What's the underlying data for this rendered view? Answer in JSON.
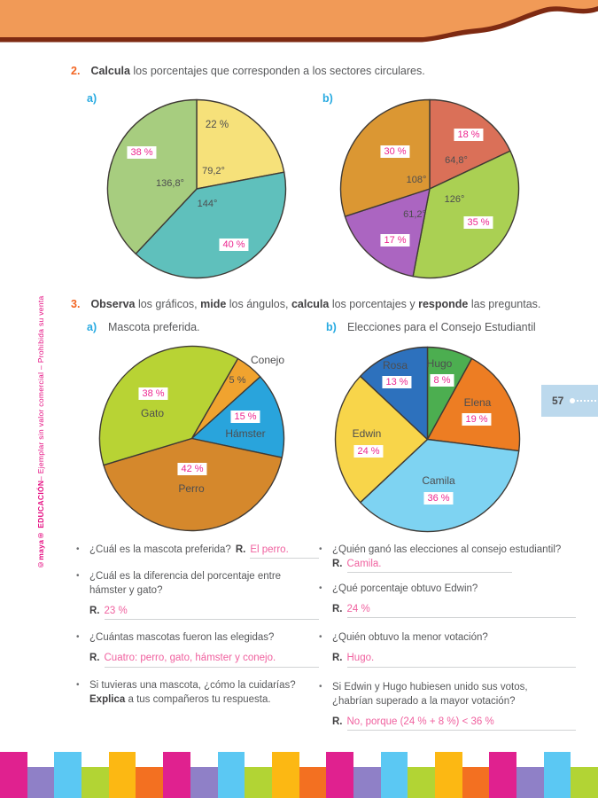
{
  "ui": {
    "bullet": "•",
    "r_label": "R."
  },
  "colors": {
    "accent_orange": "#f26522",
    "blue_label": "#27aae1",
    "magenta_value": "#ec268f",
    "answer_pink": "#f0619f",
    "band_orange": "#f19a57",
    "band_maroon": "#7e2a12",
    "tab_blue": "#bcd9ed",
    "stripe_colors": [
      "#e0218f",
      "#8f80c7",
      "#5bc8f3",
      "#b2d434",
      "#fcb813",
      "#f37021"
    ]
  },
  "sidebar": {
    "brand": "©maya® EDUCACIÓN",
    "rest": " – Ejemplar sin valor comercial – Prohibida su venta"
  },
  "page_tab": {
    "number": "57"
  },
  "exercise2": {
    "number": "2.",
    "title_bold": "Calcula",
    "title_rest": " los porcentajes que corresponden a los sectores circulares.",
    "label_a": "a)",
    "label_b": "b)"
  },
  "exercise3": {
    "number": "3.",
    "s1b": "Observa",
    "s2": " los gráficos, ",
    "s3b": "mide",
    "s4": " los ángulos, ",
    "s5b": "calcula",
    "s6": " los porcentajes y ",
    "s7b": "responde",
    "s8": " las preguntas.",
    "label_a": "a)",
    "title_a": "Mascota preferida.",
    "label_b": "b)",
    "title_b": "Elecciones para el Consejo Estudiantil"
  },
  "chart_data": [
    {
      "type": "pie",
      "id": "2a",
      "rotation": 0,
      "legend_position": "none",
      "slices": [
        {
          "value": 22,
          "color": "#f6e17a",
          "pct_label": "22 %",
          "angle_label": "79,2°"
        },
        {
          "value": 40,
          "color": "#5fc0bc",
          "pct_label": "40 %",
          "angle_label": "144°"
        },
        {
          "value": 38,
          "color": "#a7cd7f",
          "pct_label": "38 %",
          "angle_label": "136,8°"
        }
      ]
    },
    {
      "type": "pie",
      "id": "2b",
      "rotation": 0,
      "legend_position": "none",
      "slices": [
        {
          "value": 18,
          "color": "#da7058",
          "pct_label": "18 %",
          "angle_label": "64,8°"
        },
        {
          "value": 35,
          "color": "#aad053",
          "pct_label": "35 %",
          "angle_label": "126°"
        },
        {
          "value": 17,
          "color": "#ab65c1",
          "pct_label": "17 %",
          "angle_label": "61,2°"
        },
        {
          "value": 30,
          "color": "#db9733",
          "pct_label": "30 %",
          "angle_label": "108°"
        }
      ]
    },
    {
      "type": "pie",
      "id": "3a",
      "title": "Mascota preferida.",
      "rotation": 30,
      "legend_position": "none",
      "slices": [
        {
          "name": "Conejo",
          "value": 5,
          "color": "#f0a32f",
          "pct_label": "5 %"
        },
        {
          "name": "Hámster",
          "value": 15,
          "color": "#29a4dc",
          "pct_label": "15 %"
        },
        {
          "name": "Perro",
          "value": 42,
          "color": "#d5882c",
          "pct_label": "42 %"
        },
        {
          "name": "Gato",
          "value": 38,
          "color": "#b8d334",
          "pct_label": "38 %"
        }
      ]
    },
    {
      "type": "pie",
      "id": "3b",
      "title": "Elecciones para el Consejo Estudiantil",
      "rotation": 0,
      "legend_position": "none",
      "slices": [
        {
          "name": "Hugo",
          "value": 8,
          "color": "#4cae50",
          "pct_label": "8 %"
        },
        {
          "name": "Elena",
          "value": 19,
          "color": "#ed7d23",
          "pct_label": "19 %"
        },
        {
          "name": "Camila",
          "value": 36,
          "color": "#7ed3f2",
          "pct_label": "36 %"
        },
        {
          "name": "Edwin",
          "value": 24,
          "color": "#f8d54a",
          "pct_label": "24 %"
        },
        {
          "name": "Rosa",
          "value": 13,
          "color": "#2d71bd",
          "pct_label": "13 %"
        }
      ]
    }
  ],
  "questions_left": {
    "q1": {
      "text": "¿Cuál es la mascota preferida?",
      "answer": "El perro."
    },
    "q2": {
      "text": "¿Cuál es la diferencia del porcentaje entre hámster y gato?",
      "answer": "23 %"
    },
    "q3": {
      "text": "¿Cuántas mascotas fueron las elegidas?",
      "answer": "Cuatro: perro, gato, hámster y conejo."
    },
    "q4": {
      "text1": "Si tuvieras una mascota, ¿cómo la cuidarías? ",
      "bold": "Explica",
      "text2": " a tus compañeros tu respuesta."
    }
  },
  "questions_right": {
    "q1": {
      "text": "¿Quién ganó las elecciones al consejo estudiantil? ",
      "answer": "Camila."
    },
    "q2": {
      "text": "¿Qué porcentaje obtuvo Edwin?",
      "answer": "24 %"
    },
    "q3": {
      "text": "¿Quién obtuvo la menor votación?",
      "answer": "Hugo."
    },
    "q4": {
      "text": "Si Edwin y Hugo hubiesen unido sus votos, ¿habrían superado a la mayor votación?",
      "answer": "No, porque (24 % + 8 %) < 36 %"
    }
  }
}
